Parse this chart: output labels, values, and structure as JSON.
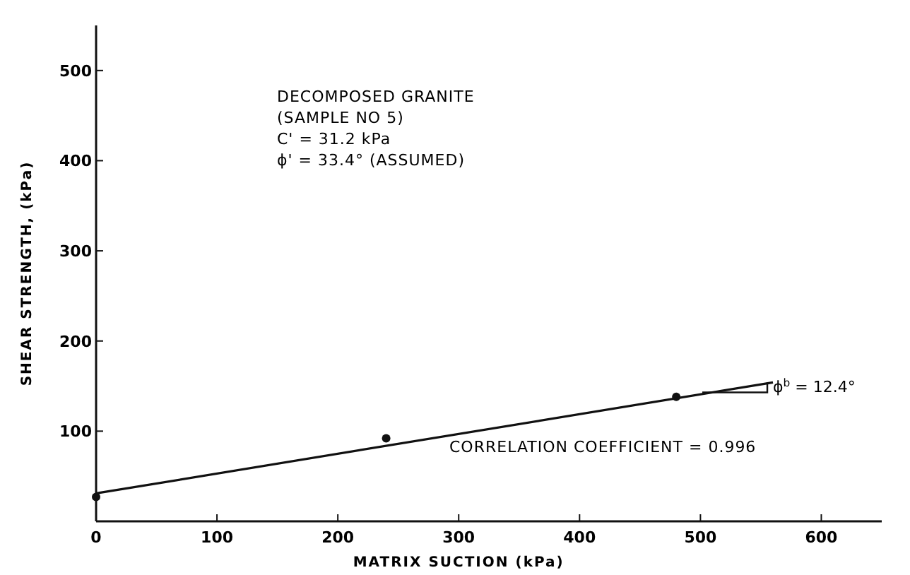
{
  "chart_data": {
    "type": "scatter",
    "xlabel": "MATRIX SUCTION (kPa)",
    "ylabel": "SHEAR STRENGTH, (kPa)",
    "xlim": [
      0,
      650
    ],
    "ylim": [
      0,
      550
    ],
    "xticks": [
      0,
      100,
      200,
      300,
      400,
      500,
      600
    ],
    "yticks": [
      {
        "value": 0,
        "label": null
      },
      100,
      200,
      300,
      400,
      500
    ],
    "grid": false,
    "series": [
      {
        "color": "#111111",
        "x": [
          0,
          240,
          480
        ],
        "values": [
          27,
          92,
          138
        ],
        "marker": "circle"
      },
      {
        "type": "line",
        "color": "#111111",
        "x": [
          0,
          560
        ],
        "values": [
          31,
          154
        ],
        "marker": "none",
        "line_style": "solid"
      }
    ],
    "annotations": [
      "DECOMPOSED GRANITE",
      "(SAMPLE NO 5)",
      "C' = 31.2 kPa",
      "ϕ' = 33.4° (ASSUMED)",
      {
        "text": "ϕ$^{b}$ = 12.4°",
        "x": 560,
        "y": 154
      },
      "CORRELATION COEFFICIENT = 0.996"
    ]
  }
}
